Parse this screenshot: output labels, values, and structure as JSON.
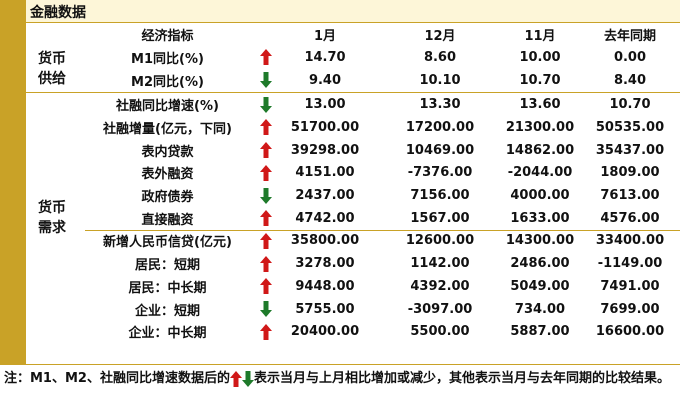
{
  "title": "金融数据",
  "table": {
    "header": [
      "经济指标",
      "1月",
      "12月",
      "11月",
      "去年同期"
    ],
    "groups": [
      {
        "label": "货币供给",
        "blocks": [
          [
            {
              "indicator": "M1同比(%)",
              "trend": "up",
              "values": [
                "14.70",
                "8.60",
                "10.00",
                "0.00"
              ]
            },
            {
              "indicator": "M2同比(%)",
              "trend": "down",
              "values": [
                "9.40",
                "10.10",
                "10.70",
                "8.40"
              ]
            }
          ]
        ]
      },
      {
        "label": "货币需求",
        "blocks": [
          [
            {
              "indicator": "社融同比增速(%)",
              "trend": "down",
              "values": [
                "13.00",
                "13.30",
                "13.60",
                "10.70"
              ]
            },
            {
              "indicator": "社融增量(亿元，下同)",
              "trend": "up",
              "values": [
                "51700.00",
                "17200.00",
                "21300.00",
                "50535.00"
              ]
            },
            {
              "indicator": "表内贷款",
              "trend": "up",
              "values": [
                "39298.00",
                "10469.00",
                "14862.00",
                "35437.00"
              ]
            },
            {
              "indicator": "表外融资",
              "trend": "up",
              "values": [
                "4151.00",
                "-7376.00",
                "-2044.00",
                "1809.00"
              ]
            },
            {
              "indicator": "政府债券",
              "trend": "down",
              "values": [
                "2437.00",
                "7156.00",
                "4000.00",
                "7613.00"
              ]
            },
            {
              "indicator": "直接融资",
              "trend": "up",
              "values": [
                "4742.00",
                "1567.00",
                "1633.00",
                "4576.00"
              ]
            }
          ],
          [
            {
              "indicator": "新增人民币信贷(亿元)",
              "trend": "up",
              "values": [
                "35800.00",
                "12600.00",
                "14300.00",
                "33400.00"
              ]
            },
            {
              "indicator": "居民：短期",
              "trend": "up",
              "values": [
                "3278.00",
                "1142.00",
                "2486.00",
                "-1149.00"
              ]
            },
            {
              "indicator": "居民：中长期",
              "trend": "up",
              "values": [
                "9448.00",
                "4392.00",
                "5049.00",
                "7491.00"
              ]
            },
            {
              "indicator": "企业：短期",
              "trend": "down",
              "values": [
                "5755.00",
                "-3097.00",
                "734.00",
                "7699.00"
              ]
            },
            {
              "indicator": "企业：中长期",
              "trend": "up",
              "values": [
                "20400.00",
                "5500.00",
                "5887.00",
                "16600.00"
              ]
            }
          ]
        ]
      }
    ]
  },
  "note": {
    "prefix": "注：M1、M2、社融同比增速数据后的",
    "suffix": "表示当月与上月相比增加或减少，其他表示当月与去年同期的比较结果。"
  }
}
